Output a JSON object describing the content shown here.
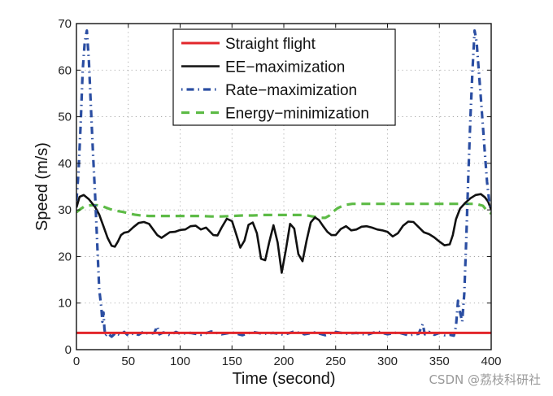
{
  "chart_data": {
    "type": "line",
    "title": "",
    "xlabel": "Time (second)",
    "ylabel": "Speed (m/s)",
    "xlim": [
      0,
      400
    ],
    "ylim": [
      0,
      70
    ],
    "xticks": [
      0,
      50,
      100,
      150,
      200,
      250,
      300,
      350,
      400
    ],
    "yticks": [
      0,
      10,
      20,
      30,
      40,
      50,
      60,
      70
    ],
    "xtick_labels": [
      "0",
      "50",
      "100",
      "150",
      "200",
      "250",
      "300",
      "350",
      "400"
    ],
    "ytick_labels": [
      "0",
      "10",
      "20",
      "30",
      "40",
      "50",
      "60",
      "70"
    ],
    "grid": true,
    "legend_position": "top-center",
    "series": [
      {
        "name": "Straight flight",
        "color": "#e2262b",
        "style": "solid",
        "x": [
          0,
          400
        ],
        "y": [
          3.6,
          3.6
        ]
      },
      {
        "name": "EE-maximization",
        "color": "#111111",
        "style": "solid",
        "x": [
          0,
          3,
          7,
          12,
          18,
          22,
          26,
          30,
          34,
          37,
          40,
          43,
          46,
          50,
          55,
          60,
          65,
          70,
          74,
          78,
          82,
          86,
          90,
          95,
          100,
          105,
          110,
          115,
          120,
          125,
          128,
          132,
          136,
          140,
          145,
          150,
          154,
          158,
          162,
          166,
          170,
          174,
          178,
          182,
          186,
          190,
          194,
          198,
          202,
          206,
          210,
          214,
          218,
          222,
          226,
          230,
          234,
          238,
          242,
          246,
          250,
          255,
          260,
          265,
          270,
          275,
          280,
          285,
          290,
          295,
          300,
          305,
          310,
          315,
          320,
          325,
          330,
          335,
          340,
          345,
          350,
          355,
          360,
          363,
          366,
          370,
          375,
          380,
          385,
          390,
          394,
          397,
          400
        ],
        "y": [
          30.5,
          32.8,
          33.2,
          32.3,
          30.6,
          29,
          26.5,
          24,
          22.3,
          22.1,
          23.2,
          24.6,
          25.1,
          25.3,
          26.3,
          27.2,
          27.4,
          27,
          25.8,
          24.6,
          24,
          24.6,
          25.2,
          25.3,
          25.7,
          25.8,
          26.5,
          26.6,
          25.8,
          26.2,
          25.5,
          24.6,
          24.5,
          26.2,
          28.1,
          27.6,
          24.8,
          21.9,
          23.4,
          26.8,
          27.3,
          25,
          19.5,
          19.2,
          23.1,
          26.7,
          23,
          16.5,
          21.5,
          27,
          26,
          20.5,
          19,
          23.5,
          27.3,
          28.4,
          27.8,
          26.5,
          25.3,
          24.6,
          24.6,
          25.9,
          26.5,
          25.6,
          25.8,
          26.4,
          26.5,
          26.2,
          25.8,
          25.6,
          25.3,
          24.3,
          25,
          26.6,
          27.5,
          27.4,
          26.3,
          25.2,
          24.8,
          24.1,
          23.2,
          22.4,
          22.6,
          24.6,
          28,
          30.3,
          31.5,
          32.5,
          33.2,
          33.4,
          32.7,
          31.8,
          30
        ]
      },
      {
        "name": "Rate-maximization",
        "color": "#2b4ea2",
        "style": "dashdot",
        "x": [
          0,
          2,
          4,
          6,
          8,
          10,
          12,
          14,
          16,
          18,
          20,
          22,
          24,
          25,
          26,
          27,
          28,
          30,
          34,
          38,
          42,
          46,
          50,
          55,
          60,
          65,
          70,
          75,
          78,
          80,
          84,
          90,
          96,
          100,
          110,
          120,
          130,
          140,
          150,
          160,
          170,
          180,
          190,
          200,
          210,
          220,
          230,
          240,
          250,
          260,
          270,
          280,
          290,
          300,
          310,
          320,
          330,
          334,
          336,
          340,
          345,
          350,
          355,
          360,
          364,
          366,
          368,
          370,
          372,
          374,
          376,
          378,
          380,
          382,
          384,
          386,
          388,
          390,
          392,
          394,
          396,
          398,
          400
        ],
        "y": [
          32,
          38,
          48,
          60,
          66,
          68.5,
          62,
          52,
          42,
          33,
          23,
          13,
          9,
          6,
          8,
          4.5,
          3,
          3.5,
          2.8,
          3.6,
          3.1,
          3.8,
          3,
          3.5,
          3.2,
          3.9,
          3.3,
          3.6,
          5,
          3.3,
          3.7,
          3.1,
          3.8,
          3.4,
          3.6,
          3.2,
          3.9,
          3.3,
          3.7,
          3.1,
          3.8,
          3.4,
          3.6,
          3.2,
          3.9,
          3.3,
          3.7,
          3.1,
          3.8,
          3.4,
          3.6,
          3.2,
          3.9,
          3.3,
          3.7,
          3.1,
          3.4,
          5.5,
          3.3,
          3.8,
          3.2,
          3.6,
          3.1,
          3.2,
          3,
          5,
          10.5,
          8,
          6,
          12,
          24,
          38,
          50,
          60,
          68.5,
          66,
          60,
          54,
          48,
          42,
          36,
          32,
          30
        ]
      },
      {
        "name": "Energy-minimization",
        "color": "#5dbb46",
        "style": "dashed",
        "x": [
          0,
          4,
          8,
          14,
          20,
          26,
          32,
          38,
          44,
          50,
          56,
          62,
          70,
          80,
          90,
          100,
          110,
          120,
          130,
          140,
          150,
          160,
          170,
          180,
          190,
          200,
          210,
          220,
          230,
          236,
          240,
          244,
          248,
          252,
          256,
          260,
          266,
          272,
          280,
          290,
          300,
          320,
          340,
          360,
          375,
          385,
          392,
          396,
          400
        ],
        "y": [
          29.5,
          30.2,
          30.8,
          31,
          31,
          30.7,
          30.2,
          29.8,
          29.6,
          29.3,
          29,
          28.8,
          28.7,
          28.7,
          28.7,
          28.7,
          28.7,
          28.7,
          28.6,
          28.6,
          28.7,
          28.8,
          28.8,
          28.9,
          28.9,
          28.9,
          28.9,
          28.9,
          28.5,
          28.3,
          28.3,
          28.8,
          29.7,
          30.4,
          30.8,
          31.1,
          31.3,
          31.3,
          31.3,
          31.3,
          31.3,
          31.3,
          31.3,
          31.3,
          31.3,
          31.3,
          30.9,
          29.8,
          29.2
        ]
      }
    ],
    "watermark": "CSDN @荔枝科研社"
  }
}
